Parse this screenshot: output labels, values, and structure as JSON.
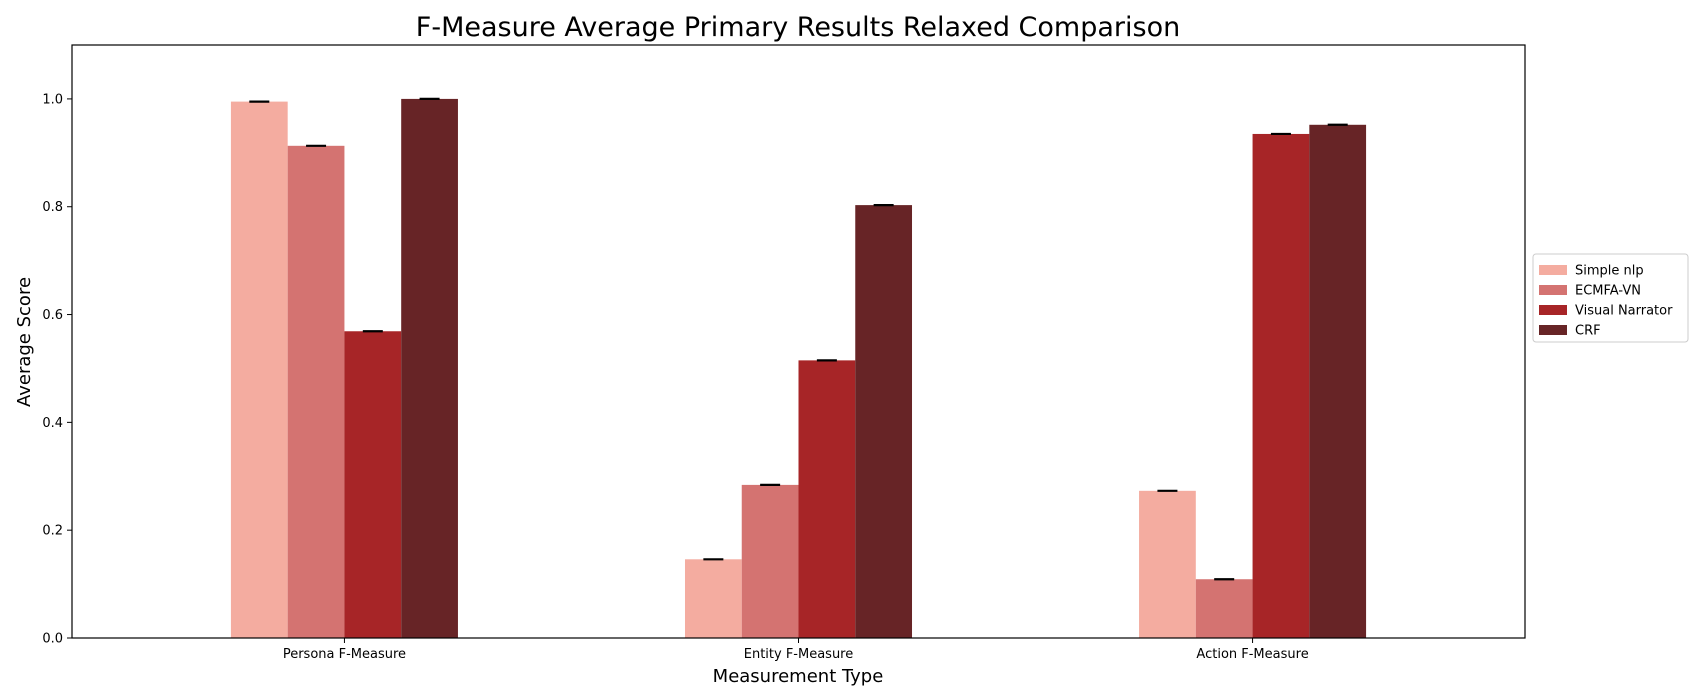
{
  "chart_data": {
    "type": "bar",
    "title": "F-Measure Average Primary Results Relaxed Comparison",
    "xlabel": "Measurement Type",
    "ylabel": "Average Score",
    "categories": [
      "Persona F-Measure",
      "Entity F-Measure",
      "Action F-Measure"
    ],
    "series": [
      {
        "name": "Simple nlp",
        "color": "#f4aca0",
        "values": [
          0.995,
          0.146,
          0.273
        ]
      },
      {
        "name": "ECMFA-VN",
        "color": "#d47371",
        "values": [
          0.913,
          0.284,
          0.109
        ]
      },
      {
        "name": "Visual Narrator",
        "color": "#a72527",
        "values": [
          0.569,
          0.515,
          0.935
        ]
      },
      {
        "name": "CRF",
        "color": "#672426",
        "values": [
          1.0,
          0.803,
          0.952
        ]
      }
    ],
    "ylim": [
      0,
      1.1
    ],
    "yticks": [
      0.0,
      0.2,
      0.4,
      0.6,
      0.8,
      1.0
    ],
    "ytick_labels": [
      "0.0",
      "0.2",
      "0.4",
      "0.6",
      "0.8",
      "1.0"
    ],
    "error_bars": true,
    "grid": false,
    "legend_position": "right"
  }
}
